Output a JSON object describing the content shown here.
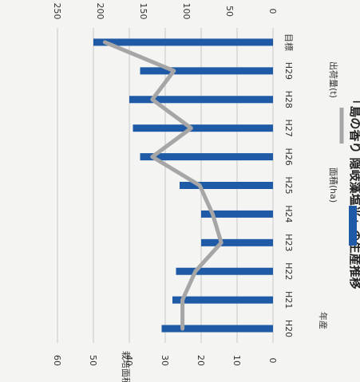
{
  "chart_data": {
    "type": "bar",
    "title": "「島の香り 隠岐藻塩米」の生産推移",
    "ylabel_left": "栽培面積",
    "ylim_left": [
      0,
      60
    ],
    "left_ticks": [
      "0",
      "10",
      "20",
      "30",
      "40",
      "50",
      "60"
    ],
    "ylim_right": [
      0,
      250
    ],
    "right_ticks": [
      "0",
      "50",
      "100",
      "150",
      "200",
      "250"
    ],
    "xlabel": "年産",
    "categories": [
      "H20",
      "H21",
      "H22",
      "H23",
      "H24",
      "H25",
      "H26",
      "H27",
      "H28",
      "H29",
      "目標"
    ],
    "series": [
      {
        "name": "面積(ha)",
        "type": "bar",
        "axis": "left",
        "color": "#1f5aa6",
        "values": [
          31,
          28,
          27,
          20,
          20,
          26,
          37,
          39,
          40,
          37,
          50
        ]
      },
      {
        "name": "出荷量(t)",
        "type": "line",
        "axis": "right",
        "color": "#a6a6a6",
        "values": [
          105,
          105,
          90,
          60,
          70,
          85,
          140,
          95,
          140,
          115,
          195
        ]
      }
    ],
    "legend_position": "bottom",
    "grid": true
  }
}
